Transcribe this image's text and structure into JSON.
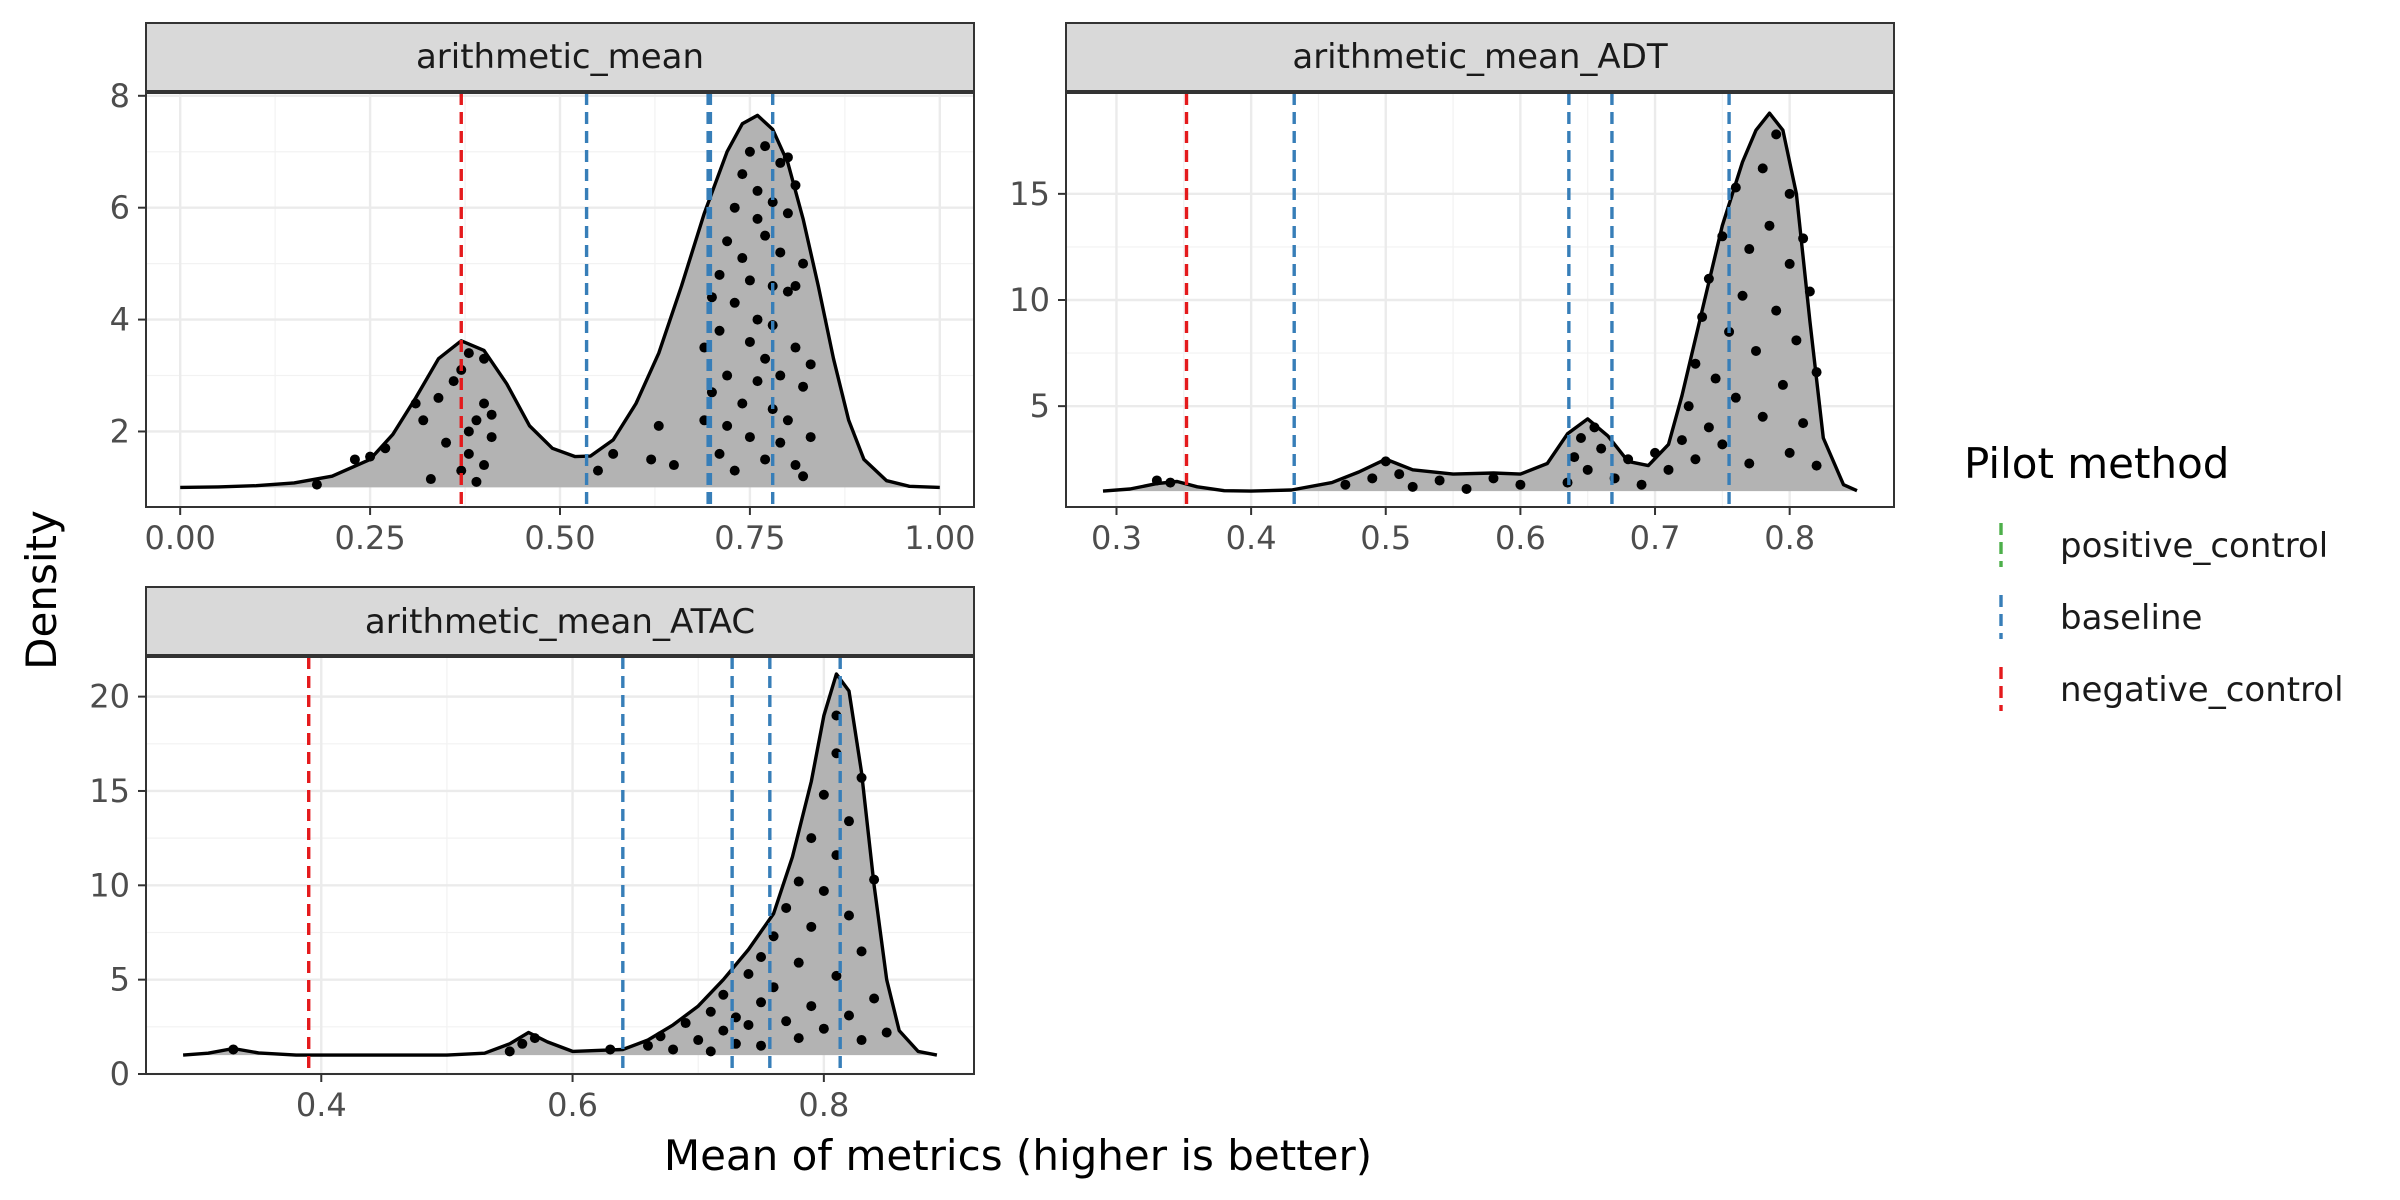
{
  "chart_data": {
    "type": "area",
    "title": "",
    "xlabel": "Mean of metrics (higher is better)",
    "ylabel": "Density",
    "legend": {
      "title": "Pilot method",
      "placement": "right",
      "entries": [
        {
          "name": "positive_control",
          "color": "#4daf4a"
        },
        {
          "name": "baseline",
          "color": "#377eb8"
        },
        {
          "name": "negative_control",
          "color": "#e41a1c"
        }
      ]
    },
    "grid": true,
    "panels": [
      {
        "title": "arithmetic_mean",
        "xlim": [
          -0.045,
          1.045
        ],
        "ylim": [
          0.65,
          8.05
        ],
        "xticks": [
          0,
          0.25,
          0.5,
          0.75,
          1
        ],
        "xtick_labels": [
          "0.00",
          "0.25",
          "0.50",
          "0.75",
          "1.00"
        ],
        "yticks": [
          2,
          4,
          6,
          8
        ],
        "ytick_labels": [
          "2",
          "4",
          "6",
          "8"
        ],
        "density": {
          "x": [
            0.0,
            0.05,
            0.1,
            0.15,
            0.2,
            0.25,
            0.28,
            0.31,
            0.34,
            0.37,
            0.4,
            0.43,
            0.46,
            0.49,
            0.52,
            0.54,
            0.57,
            0.6,
            0.63,
            0.66,
            0.69,
            0.72,
            0.74,
            0.76,
            0.78,
            0.8,
            0.82,
            0.84,
            0.86,
            0.88,
            0.9,
            0.93,
            0.96,
            1.0
          ],
          "y": [
            1.0,
            1.01,
            1.03,
            1.08,
            1.2,
            1.5,
            1.95,
            2.6,
            3.3,
            3.62,
            3.45,
            2.85,
            2.1,
            1.7,
            1.55,
            1.56,
            1.85,
            2.5,
            3.4,
            4.6,
            5.9,
            7.0,
            7.5,
            7.65,
            7.4,
            6.8,
            5.8,
            4.6,
            3.3,
            2.2,
            1.5,
            1.12,
            1.02,
            1.0
          ]
        },
        "jitter_points": [
          [
            0.18,
            1.05
          ],
          [
            0.23,
            1.5
          ],
          [
            0.25,
            1.55
          ],
          [
            0.27,
            1.7
          ],
          [
            0.31,
            2.5
          ],
          [
            0.32,
            2.2
          ],
          [
            0.33,
            1.15
          ],
          [
            0.34,
            2.6
          ],
          [
            0.35,
            1.8
          ],
          [
            0.36,
            2.9
          ],
          [
            0.37,
            3.1
          ],
          [
            0.37,
            1.3
          ],
          [
            0.38,
            2.0
          ],
          [
            0.38,
            3.4
          ],
          [
            0.38,
            1.6
          ],
          [
            0.39,
            2.2
          ],
          [
            0.39,
            1.1
          ],
          [
            0.4,
            2.5
          ],
          [
            0.4,
            1.4
          ],
          [
            0.4,
            3.3
          ],
          [
            0.41,
            1.9
          ],
          [
            0.41,
            2.3
          ],
          [
            0.55,
            1.3
          ],
          [
            0.57,
            1.6
          ],
          [
            0.62,
            1.5
          ],
          [
            0.63,
            2.1
          ],
          [
            0.65,
            1.4
          ],
          [
            0.69,
            2.2
          ],
          [
            0.69,
            3.5
          ],
          [
            0.7,
            4.4
          ],
          [
            0.7,
            2.7
          ],
          [
            0.71,
            3.8
          ],
          [
            0.71,
            4.8
          ],
          [
            0.71,
            1.6
          ],
          [
            0.72,
            5.4
          ],
          [
            0.72,
            3.0
          ],
          [
            0.72,
            2.1
          ],
          [
            0.73,
            4.3
          ],
          [
            0.73,
            6.0
          ],
          [
            0.73,
            1.3
          ],
          [
            0.74,
            5.1
          ],
          [
            0.74,
            2.5
          ],
          [
            0.74,
            6.6
          ],
          [
            0.75,
            3.6
          ],
          [
            0.75,
            4.7
          ],
          [
            0.75,
            1.9
          ],
          [
            0.75,
            7.0
          ],
          [
            0.76,
            5.8
          ],
          [
            0.76,
            2.9
          ],
          [
            0.76,
            4.0
          ],
          [
            0.76,
            6.3
          ],
          [
            0.77,
            3.3
          ],
          [
            0.77,
            5.5
          ],
          [
            0.77,
            1.5
          ],
          [
            0.77,
            7.1
          ],
          [
            0.78,
            4.6
          ],
          [
            0.78,
            2.4
          ],
          [
            0.78,
            6.1
          ],
          [
            0.78,
            3.9
          ],
          [
            0.79,
            5.2
          ],
          [
            0.79,
            1.8
          ],
          [
            0.79,
            6.8
          ],
          [
            0.79,
            3.0
          ],
          [
            0.8,
            4.5
          ],
          [
            0.8,
            2.2
          ],
          [
            0.8,
            5.9
          ],
          [
            0.8,
            6.9
          ],
          [
            0.81,
            3.5
          ],
          [
            0.81,
            1.4
          ],
          [
            0.81,
            4.6
          ],
          [
            0.81,
            6.4
          ],
          [
            0.82,
            2.8
          ],
          [
            0.82,
            5.0
          ],
          [
            0.82,
            1.2
          ],
          [
            0.83,
            3.2
          ],
          [
            0.83,
            1.9
          ]
        ],
        "vlines": [
          {
            "x": 0.37,
            "color": "#e41a1c"
          },
          {
            "x": 0.535,
            "color": "#377eb8"
          },
          {
            "x": 0.695,
            "color": "#377eb8"
          },
          {
            "x": 0.698,
            "color": "#377eb8"
          },
          {
            "x": 0.78,
            "color": "#377eb8"
          }
        ]
      },
      {
        "title": "arithmetic_mean_ADT",
        "xlim": [
          0.2625,
          0.8775
        ],
        "ylim": [
          0.25,
          19.75
        ],
        "xticks": [
          0.3,
          0.4,
          0.5,
          0.6,
          0.7,
          0.8
        ],
        "xtick_labels": [
          "0.3",
          "0.4",
          "0.5",
          "0.6",
          "0.7",
          "0.8"
        ],
        "yticks": [
          5,
          10,
          15
        ],
        "ytick_labels": [
          "5",
          "10",
          "15"
        ],
        "density": {
          "x": [
            0.29,
            0.31,
            0.33,
            0.345,
            0.36,
            0.38,
            0.4,
            0.43,
            0.46,
            0.48,
            0.5,
            0.52,
            0.55,
            0.58,
            0.6,
            0.62,
            0.635,
            0.65,
            0.665,
            0.68,
            0.695,
            0.71,
            0.72,
            0.735,
            0.75,
            0.765,
            0.775,
            0.785,
            0.795,
            0.805,
            0.815,
            0.825,
            0.84,
            0.85
          ],
          "y": [
            1.0,
            1.1,
            1.35,
            1.45,
            1.2,
            1.02,
            1.0,
            1.05,
            1.4,
            1.9,
            2.5,
            2.0,
            1.8,
            1.85,
            1.8,
            2.3,
            3.7,
            4.4,
            3.6,
            2.4,
            2.2,
            3.2,
            5.5,
            9.5,
            13.5,
            16.5,
            18.0,
            18.8,
            18.0,
            15.0,
            9.0,
            3.5,
            1.3,
            1.02
          ]
        },
        "jitter_points": [
          [
            0.33,
            1.5
          ],
          [
            0.34,
            1.4
          ],
          [
            0.47,
            1.3
          ],
          [
            0.49,
            1.6
          ],
          [
            0.5,
            2.4
          ],
          [
            0.51,
            1.8
          ],
          [
            0.52,
            1.2
          ],
          [
            0.54,
            1.5
          ],
          [
            0.56,
            1.1
          ],
          [
            0.58,
            1.6
          ],
          [
            0.6,
            1.3
          ],
          [
            0.635,
            1.4
          ],
          [
            0.64,
            2.6
          ],
          [
            0.645,
            3.5
          ],
          [
            0.65,
            2.0
          ],
          [
            0.655,
            4.0
          ],
          [
            0.66,
            3.0
          ],
          [
            0.67,
            1.6
          ],
          [
            0.68,
            2.5
          ],
          [
            0.69,
            1.3
          ],
          [
            0.7,
            2.8
          ],
          [
            0.71,
            2.0
          ],
          [
            0.72,
            3.4
          ],
          [
            0.725,
            5.0
          ],
          [
            0.73,
            7.0
          ],
          [
            0.73,
            2.5
          ],
          [
            0.735,
            9.2
          ],
          [
            0.74,
            4.0
          ],
          [
            0.74,
            11.0
          ],
          [
            0.745,
            6.3
          ],
          [
            0.75,
            13.0
          ],
          [
            0.75,
            3.2
          ],
          [
            0.755,
            8.5
          ],
          [
            0.76,
            15.3
          ],
          [
            0.76,
            5.4
          ],
          [
            0.765,
            10.2
          ],
          [
            0.77,
            12.4
          ],
          [
            0.77,
            2.3
          ],
          [
            0.775,
            7.6
          ],
          [
            0.78,
            16.2
          ],
          [
            0.78,
            4.5
          ],
          [
            0.785,
            13.5
          ],
          [
            0.79,
            9.5
          ],
          [
            0.79,
            17.8
          ],
          [
            0.795,
            6.0
          ],
          [
            0.8,
            11.7
          ],
          [
            0.8,
            15.0
          ],
          [
            0.8,
            2.8
          ],
          [
            0.805,
            8.1
          ],
          [
            0.81,
            12.9
          ],
          [
            0.81,
            4.2
          ],
          [
            0.815,
            10.4
          ],
          [
            0.82,
            6.6
          ],
          [
            0.82,
            2.2
          ]
        ],
        "vlines": [
          {
            "x": 0.352,
            "color": "#e41a1c"
          },
          {
            "x": 0.432,
            "color": "#377eb8"
          },
          {
            "x": 0.636,
            "color": "#377eb8"
          },
          {
            "x": 0.668,
            "color": "#377eb8"
          },
          {
            "x": 0.755,
            "color": "#377eb8"
          }
        ]
      },
      {
        "title": "arithmetic_mean_ATAC",
        "xlim": [
          0.2605,
          0.9195
        ],
        "ylim": [
          0,
          22.1
        ],
        "xticks": [
          0.4,
          0.6,
          0.8
        ],
        "xtick_labels": [
          "0.4",
          "0.6",
          "0.8"
        ],
        "yticks": [
          0,
          5,
          10,
          15,
          20
        ],
        "ytick_labels": [
          "0",
          "5",
          "10",
          "15",
          "20"
        ],
        "density": {
          "x": [
            0.29,
            0.31,
            0.33,
            0.35,
            0.38,
            0.42,
            0.46,
            0.5,
            0.53,
            0.55,
            0.565,
            0.58,
            0.6,
            0.62,
            0.64,
            0.66,
            0.68,
            0.7,
            0.72,
            0.74,
            0.76,
            0.775,
            0.79,
            0.8,
            0.81,
            0.82,
            0.83,
            0.84,
            0.85,
            0.86,
            0.875,
            0.89
          ],
          "y": [
            1.0,
            1.1,
            1.35,
            1.12,
            1.0,
            1.0,
            1.0,
            1.0,
            1.1,
            1.6,
            2.2,
            1.7,
            1.2,
            1.25,
            1.3,
            1.8,
            2.6,
            3.6,
            5.0,
            6.6,
            8.5,
            11.5,
            15.5,
            19.0,
            21.2,
            20.3,
            16.0,
            10.0,
            5.0,
            2.3,
            1.2,
            1.0
          ]
        },
        "jitter_points": [
          [
            0.33,
            1.3
          ],
          [
            0.55,
            1.2
          ],
          [
            0.56,
            1.6
          ],
          [
            0.57,
            1.9
          ],
          [
            0.63,
            1.3
          ],
          [
            0.66,
            1.5
          ],
          [
            0.67,
            2.0
          ],
          [
            0.68,
            1.3
          ],
          [
            0.69,
            2.7
          ],
          [
            0.7,
            1.8
          ],
          [
            0.71,
            3.3
          ],
          [
            0.71,
            1.2
          ],
          [
            0.72,
            4.2
          ],
          [
            0.72,
            2.3
          ],
          [
            0.73,
            3.0
          ],
          [
            0.73,
            1.6
          ],
          [
            0.74,
            5.3
          ],
          [
            0.74,
            2.6
          ],
          [
            0.75,
            6.2
          ],
          [
            0.75,
            3.8
          ],
          [
            0.75,
            1.5
          ],
          [
            0.76,
            7.3
          ],
          [
            0.76,
            4.6
          ],
          [
            0.77,
            8.8
          ],
          [
            0.77,
            2.8
          ],
          [
            0.78,
            10.2
          ],
          [
            0.78,
            5.9
          ],
          [
            0.78,
            1.9
          ],
          [
            0.79,
            12.5
          ],
          [
            0.79,
            3.6
          ],
          [
            0.79,
            7.8
          ],
          [
            0.8,
            14.8
          ],
          [
            0.8,
            9.7
          ],
          [
            0.8,
            2.4
          ],
          [
            0.81,
            17.0
          ],
          [
            0.81,
            5.2
          ],
          [
            0.81,
            11.6
          ],
          [
            0.81,
            19.0
          ],
          [
            0.82,
            13.4
          ],
          [
            0.82,
            3.1
          ],
          [
            0.82,
            8.4
          ],
          [
            0.83,
            15.7
          ],
          [
            0.83,
            6.5
          ],
          [
            0.83,
            1.8
          ],
          [
            0.84,
            10.3
          ],
          [
            0.84,
            4.0
          ],
          [
            0.85,
            2.2
          ]
        ],
        "vlines": [
          {
            "x": 0.39,
            "color": "#e41a1c"
          },
          {
            "x": 0.64,
            "color": "#377eb8"
          },
          {
            "x": 0.727,
            "color": "#377eb8"
          },
          {
            "x": 0.757,
            "color": "#377eb8"
          },
          {
            "x": 0.813,
            "color": "#377eb8"
          }
        ]
      }
    ]
  }
}
